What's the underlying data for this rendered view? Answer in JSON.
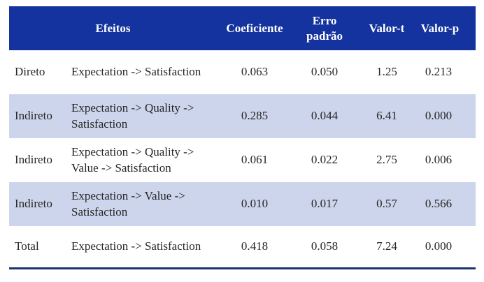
{
  "colors": {
    "header_bg": "#14339e",
    "stripe_bg": "#ccd5eb",
    "bottom_rule": "#1a336f",
    "header_text": "#ffffff",
    "body_text": "#262626"
  },
  "table": {
    "header": {
      "efeitos": "Efeitos",
      "coeficiente": "Coeficiente",
      "erro_padrao": "Erro padrão",
      "valor_t": "Valor-t",
      "valor_p": "Valor-p"
    },
    "rows": [
      {
        "tipo": "Direto",
        "efeito": "Expectation -> Satisfaction",
        "coeficiente": "0.063",
        "erro_padrao": "0.050",
        "valor_t": "1.25",
        "valor_p": "0.213"
      },
      {
        "tipo": "Indireto",
        "efeito": "Expectation -> Quality -> Satisfaction",
        "coeficiente": "0.285",
        "erro_padrao": "0.044",
        "valor_t": "6.41",
        "valor_p": "0.000"
      },
      {
        "tipo": "Indireto",
        "efeito": "Expectation -> Quality -> Value -> Satisfaction",
        "coeficiente": "0.061",
        "erro_padrao": "0.022",
        "valor_t": "2.75",
        "valor_p": "0.006"
      },
      {
        "tipo": "Indireto",
        "efeito": "Expectation -> Value -> Satisfaction",
        "coeficiente": "0.010",
        "erro_padrao": "0.017",
        "valor_t": "0.57",
        "valor_p": "0.566"
      },
      {
        "tipo": "Total",
        "efeito": "Expectation -> Satisfaction",
        "coeficiente": "0.418",
        "erro_padrao": "0.058",
        "valor_t": "7.24",
        "valor_p": "0.000"
      }
    ]
  }
}
